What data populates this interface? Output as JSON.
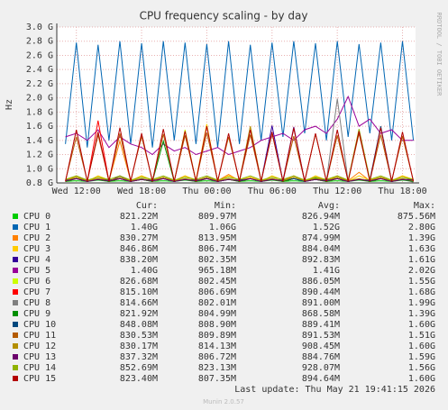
{
  "chart_data": {
    "type": "line",
    "title": "CPU frequency scaling - by day",
    "ylabel": "Hz",
    "side_label": "RRDTOOL / TOBI OETIKER",
    "footer": "Last update: Thu May 21 19:41:15 2026",
    "version": "Munin 2.0.57",
    "grid": true,
    "xlim": [
      10.2,
      43.2
    ],
    "xticks": [
      {
        "value": 12,
        "label": "Wed 12:00"
      },
      {
        "value": 18,
        "label": "Wed 18:00"
      },
      {
        "value": 24,
        "label": "Thu 00:00"
      },
      {
        "value": 30,
        "label": "Thu 06:00"
      },
      {
        "value": 36,
        "label": "Thu 12:00"
      },
      {
        "value": 42,
        "label": "Thu 18:00"
      }
    ],
    "ylim": [
      0.8,
      3.0
    ],
    "yticks": [
      {
        "value": 0.8,
        "label": "0.8 G"
      },
      {
        "value": 1.0,
        "label": "1.0 G"
      },
      {
        "value": 1.2,
        "label": "1.2 G"
      },
      {
        "value": 1.4,
        "label": "1.4 G"
      },
      {
        "value": 1.6,
        "label": "1.6 G"
      },
      {
        "value": 1.8,
        "label": "1.8 G"
      },
      {
        "value": 2.0,
        "label": "2.0 G"
      },
      {
        "value": 2.2,
        "label": "2.2 G"
      },
      {
        "value": 2.4,
        "label": "2.4 G"
      },
      {
        "value": 2.6,
        "label": "2.6 G"
      },
      {
        "value": 2.8,
        "label": "2.8 G"
      },
      {
        "value": 3.0,
        "label": "3.0 G"
      }
    ],
    "legend_headers": [
      "Cur:",
      "Min:",
      "Avg:",
      "Max:"
    ],
    "x": [
      11,
      12,
      13,
      14,
      15,
      16,
      17,
      18,
      19,
      20,
      21,
      22,
      23,
      24,
      25,
      26,
      27,
      28,
      29,
      30,
      31,
      32,
      33,
      34,
      35,
      36,
      37,
      38,
      39,
      40,
      41,
      42,
      43
    ],
    "series": [
      {
        "name": "CPU 0",
        "color": "#00cc00",
        "stats": [
          "821.22M",
          "809.97M",
          "826.94M",
          "875.56M"
        ],
        "values": [
          0.82,
          0.83,
          0.82,
          0.84,
          0.82,
          0.83,
          0.82,
          0.86,
          0.82,
          0.83,
          0.82,
          0.84,
          0.82,
          0.83,
          0.82,
          0.85,
          0.82,
          0.83,
          0.82,
          0.84,
          0.82,
          0.83,
          0.82,
          0.87,
          0.82,
          0.83,
          0.82,
          0.84,
          0.82,
          0.83,
          0.82,
          0.84,
          0.82
        ]
      },
      {
        "name": "CPU 1",
        "color": "#0066b3",
        "stats": [
          "1.40G",
          "1.06G",
          "1.52G",
          "2.80G"
        ],
        "values": [
          1.35,
          2.78,
          1.3,
          2.75,
          1.4,
          2.8,
          1.35,
          2.77,
          1.3,
          2.8,
          1.4,
          2.78,
          1.35,
          2.76,
          1.3,
          2.8,
          1.35,
          2.75,
          1.4,
          2.78,
          1.45,
          2.8,
          1.5,
          2.77,
          1.4,
          2.8,
          1.45,
          2.76,
          1.5,
          2.78,
          1.4,
          2.8,
          1.4
        ]
      },
      {
        "name": "CPU 2",
        "color": "#ff8000",
        "stats": [
          "830.27M",
          "813.95M",
          "874.99M",
          "1.39G"
        ],
        "values": [
          0.83,
          0.9,
          0.83,
          0.88,
          0.83,
          1.39,
          0.83,
          0.9,
          0.83,
          0.86,
          0.83,
          0.9,
          0.83,
          0.88,
          0.83,
          0.92,
          0.83,
          0.88,
          0.83,
          0.86,
          0.83,
          0.9,
          0.83,
          0.88,
          0.83,
          0.9,
          0.83,
          0.95,
          0.83,
          0.88,
          0.83,
          0.9,
          0.83
        ]
      },
      {
        "name": "CPU 3",
        "color": "#ffcc00",
        "stats": [
          "846.86M",
          "806.74M",
          "884.04M",
          "1.63G"
        ],
        "values": [
          0.84,
          0.88,
          0.82,
          0.9,
          0.84,
          0.86,
          0.82,
          0.9,
          0.84,
          0.88,
          0.82,
          0.9,
          0.84,
          1.63,
          0.82,
          0.9,
          0.84,
          0.88,
          0.82,
          0.9,
          0.84,
          0.86,
          0.82,
          0.9,
          0.84,
          0.88,
          0.82,
          0.9,
          0.84,
          0.88,
          0.82,
          0.9,
          0.85
        ]
      },
      {
        "name": "CPU 4",
        "color": "#330099",
        "stats": [
          "838.20M",
          "802.35M",
          "892.83M",
          "1.61G"
        ],
        "values": [
          0.82,
          0.86,
          0.82,
          0.85,
          0.82,
          0.9,
          0.82,
          0.85,
          0.82,
          0.86,
          0.82,
          0.85,
          0.82,
          0.86,
          0.82,
          0.85,
          0.82,
          0.86,
          0.82,
          1.61,
          0.82,
          0.86,
          0.82,
          0.85,
          0.82,
          0.86,
          0.82,
          0.85,
          0.82,
          0.86,
          0.82,
          0.85,
          0.84
        ]
      },
      {
        "name": "CPU 5",
        "color": "#990099",
        "stats": [
          "1.40G",
          "965.18M",
          "1.41G",
          "2.02G"
        ],
        "values": [
          1.45,
          1.5,
          1.4,
          1.55,
          1.3,
          1.45,
          1.35,
          1.3,
          1.2,
          1.35,
          1.25,
          1.3,
          1.2,
          1.25,
          1.3,
          1.2,
          1.25,
          1.3,
          1.4,
          1.45,
          1.5,
          1.4,
          1.55,
          1.6,
          1.5,
          1.7,
          2.02,
          1.6,
          1.7,
          1.5,
          1.55,
          1.4,
          1.4
        ]
      },
      {
        "name": "CPU 6",
        "color": "#ccff00",
        "stats": [
          "826.68M",
          "802.45M",
          "886.05M",
          "1.55G"
        ],
        "values": [
          0.82,
          0.86,
          0.82,
          0.85,
          0.82,
          0.86,
          0.82,
          0.85,
          0.82,
          0.86,
          0.82,
          1.55,
          0.82,
          0.86,
          0.82,
          0.85,
          0.82,
          0.86,
          0.82,
          0.85,
          0.82,
          0.86,
          0.82,
          0.85,
          0.82,
          0.86,
          0.82,
          0.85,
          0.82,
          0.86,
          0.82,
          0.85,
          0.83
        ]
      },
      {
        "name": "CPU 7",
        "color": "#ff0000",
        "stats": [
          "815.10M",
          "806.69M",
          "890.44M",
          "1.68G"
        ],
        "values": [
          0.82,
          0.86,
          0.82,
          1.68,
          0.82,
          0.86,
          0.82,
          0.85,
          0.82,
          0.86,
          0.82,
          0.85,
          0.82,
          0.86,
          0.82,
          0.85,
          0.82,
          0.86,
          0.82,
          0.85,
          0.82,
          0.86,
          0.82,
          0.85,
          0.82,
          0.86,
          0.82,
          0.85,
          0.82,
          0.86,
          0.82,
          0.85,
          0.82
        ]
      },
      {
        "name": "CPU 8",
        "color": "#808080",
        "stats": [
          "814.66M",
          "802.01M",
          "891.00M",
          "1.99G"
        ],
        "values": [
          0.82,
          0.86,
          0.82,
          0.85,
          0.82,
          0.86,
          0.82,
          0.85,
          0.82,
          0.86,
          0.82,
          0.85,
          0.82,
          0.86,
          0.82,
          0.85,
          0.82,
          0.86,
          0.82,
          0.85,
          0.82,
          0.86,
          0.82,
          0.85,
          0.82,
          1.99,
          0.82,
          0.85,
          0.82,
          0.86,
          0.82,
          0.85,
          0.81
        ]
      },
      {
        "name": "CPU 9",
        "color": "#008f00",
        "stats": [
          "821.92M",
          "804.99M",
          "868.58M",
          "1.39G"
        ],
        "values": [
          0.82,
          0.86,
          0.82,
          0.85,
          0.82,
          0.86,
          0.82,
          0.85,
          0.82,
          1.39,
          0.82,
          0.85,
          0.82,
          0.86,
          0.82,
          0.85,
          0.82,
          0.86,
          0.82,
          0.85,
          0.82,
          0.86,
          0.82,
          0.85,
          0.82,
          0.86,
          0.82,
          0.85,
          0.82,
          0.86,
          0.82,
          0.85,
          0.82
        ]
      },
      {
        "name": "CPU 10",
        "color": "#00487d",
        "stats": [
          "848.08M",
          "808.90M",
          "889.41M",
          "1.60G"
        ],
        "values": [
          0.84,
          0.86,
          0.82,
          0.85,
          0.84,
          0.86,
          0.82,
          0.85,
          0.84,
          0.86,
          0.82,
          0.85,
          0.84,
          0.86,
          0.82,
          0.85,
          0.84,
          0.86,
          0.82,
          0.85,
          0.84,
          0.86,
          0.82,
          0.85,
          0.84,
          0.86,
          0.82,
          0.85,
          0.84,
          1.6,
          0.82,
          0.85,
          0.85
        ]
      },
      {
        "name": "CPU 11",
        "color": "#b35a00",
        "stats": [
          "830.53M",
          "809.89M",
          "891.53M",
          "1.51G"
        ],
        "values": [
          0.83,
          1.45,
          0.83,
          1.48,
          0.83,
          1.5,
          0.83,
          1.46,
          0.83,
          1.49,
          0.83,
          1.47,
          0.83,
          1.51,
          0.83,
          1.45,
          0.83,
          1.48,
          0.83,
          1.5,
          0.83,
          1.46,
          0.83,
          1.49,
          0.83,
          1.47,
          0.83,
          1.5,
          0.83,
          1.48,
          0.83,
          1.46,
          0.83
        ]
      },
      {
        "name": "CPU 12",
        "color": "#b38f00",
        "stats": [
          "830.17M",
          "814.13M",
          "908.45M",
          "1.60G"
        ],
        "values": [
          0.83,
          0.88,
          0.83,
          0.86,
          0.83,
          0.88,
          0.83,
          0.86,
          0.83,
          0.88,
          0.83,
          0.86,
          0.83,
          0.88,
          0.83,
          0.86,
          0.83,
          1.6,
          0.83,
          0.86,
          0.83,
          0.88,
          0.83,
          0.86,
          0.83,
          0.88,
          0.83,
          0.86,
          0.83,
          0.88,
          0.83,
          0.86,
          0.83
        ]
      },
      {
        "name": "CPU 13",
        "color": "#6b006b",
        "stats": [
          "837.32M",
          "806.72M",
          "884.76M",
          "1.59G"
        ],
        "values": [
          0.83,
          0.86,
          0.82,
          0.85,
          0.83,
          0.86,
          0.82,
          0.85,
          0.83,
          0.86,
          0.82,
          0.85,
          0.83,
          0.86,
          0.82,
          0.85,
          0.83,
          0.86,
          0.82,
          0.85,
          0.83,
          1.59,
          0.82,
          0.85,
          0.83,
          0.86,
          0.82,
          0.85,
          0.83,
          0.86,
          0.82,
          0.85,
          0.84
        ]
      },
      {
        "name": "CPU 14",
        "color": "#8fb300",
        "stats": [
          "852.69M",
          "823.13M",
          "928.07M",
          "1.56G"
        ],
        "values": [
          0.85,
          0.9,
          0.84,
          0.88,
          0.85,
          0.9,
          0.84,
          0.88,
          0.85,
          0.9,
          0.84,
          0.88,
          0.85,
          0.9,
          0.84,
          0.88,
          0.85,
          0.9,
          0.84,
          0.88,
          0.85,
          0.9,
          0.84,
          0.88,
          0.85,
          0.9,
          0.84,
          1.56,
          0.85,
          0.9,
          0.84,
          0.88,
          0.85
        ]
      },
      {
        "name": "CPU 15",
        "color": "#b30000",
        "stats": [
          "823.40M",
          "807.35M",
          "894.64M",
          "1.60G"
        ],
        "values": [
          0.82,
          1.55,
          0.82,
          1.52,
          0.82,
          1.58,
          0.82,
          1.5,
          0.82,
          1.56,
          0.82,
          1.53,
          0.82,
          1.6,
          0.82,
          1.5,
          0.82,
          1.55,
          0.82,
          1.52,
          0.82,
          1.57,
          0.82,
          1.5,
          0.82,
          1.55,
          0.82,
          1.53,
          0.82,
          1.58,
          0.82,
          1.52,
          0.82
        ]
      }
    ]
  }
}
